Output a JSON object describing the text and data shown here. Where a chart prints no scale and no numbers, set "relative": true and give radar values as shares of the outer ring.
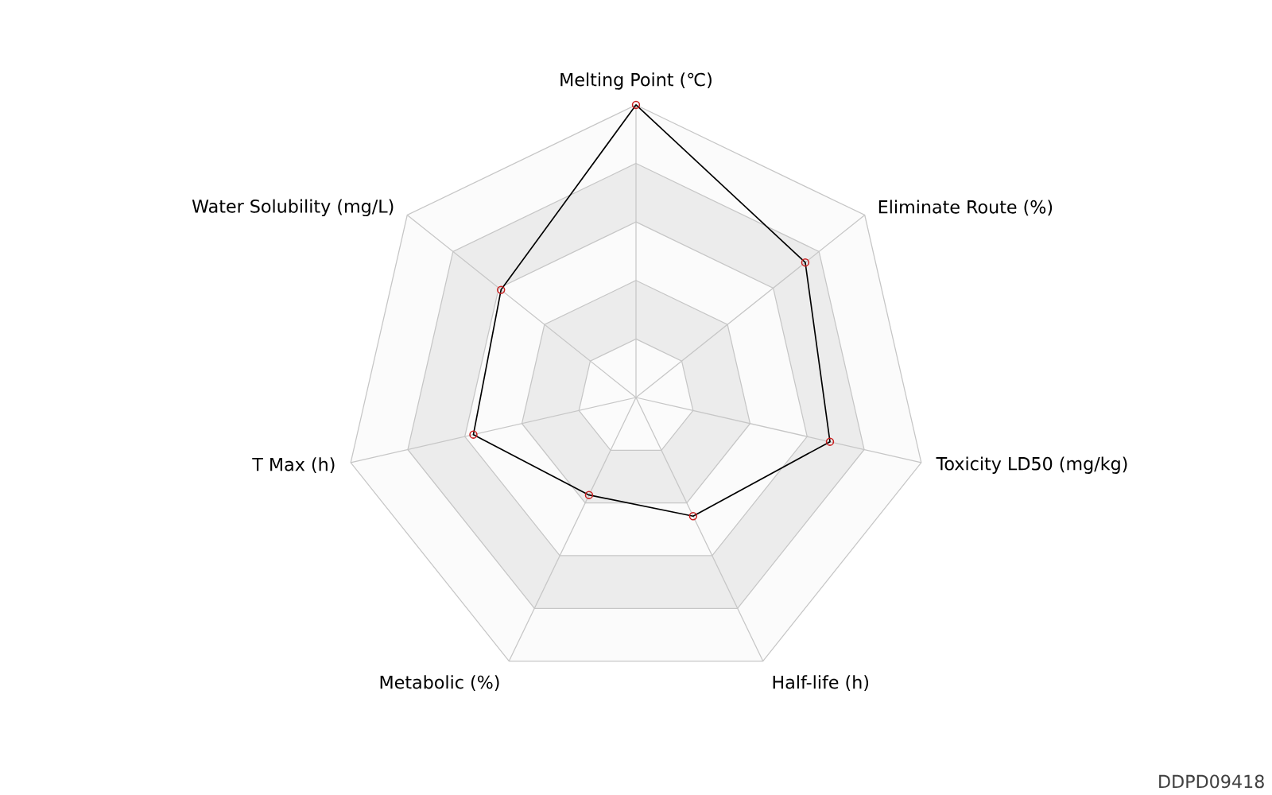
{
  "chart_data": {
    "type": "radar",
    "relative": true,
    "categories": [
      "Melting Point (℃)",
      "Eliminate Route (%)",
      "Toxicity LD50 (mg/kg)",
      "Half-life (h)",
      "Metabolic (%)",
      "T Max (h)",
      "Water Solubility (mg/L)"
    ],
    "series": [
      {
        "color": "#000000",
        "values": [
          1.0,
          0.74,
          0.68,
          0.45,
          0.37,
          0.57,
          0.59
        ]
      }
    ],
    "marker": "circle",
    "annotations": [
      "DDPD09418"
    ]
  }
}
